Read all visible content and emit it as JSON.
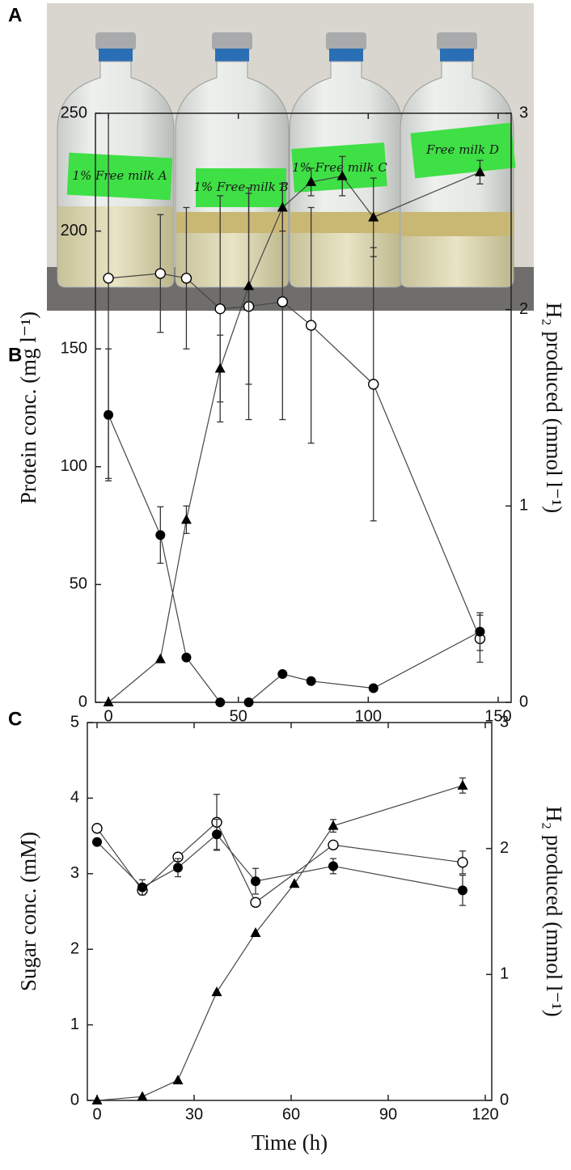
{
  "panel_labels": [
    "A",
    "B",
    "C"
  ],
  "photo": {
    "labels": [
      "1% Free milk A",
      "1% Free milk B",
      "1% Free milk C",
      "Free milk D"
    ]
  },
  "chart_data": [
    {
      "type": "line",
      "ylabel": "Protein conc. (mg l⁻¹)",
      "y2label": "H₂ produced (mmol l⁻¹)",
      "xlim": [
        -5,
        155
      ],
      "xticks": [
        0,
        50,
        100,
        150
      ],
      "ylim": [
        0,
        250
      ],
      "yticks": [
        0,
        50,
        100,
        150,
        200,
        250
      ],
      "y2lim": [
        0,
        3
      ],
      "y2ticks": [
        0,
        1,
        2,
        3
      ],
      "series": [
        {
          "marker": "open-circle",
          "color": "#000000",
          "x": [
            0,
            20,
            30,
            43,
            54,
            67,
            78,
            102,
            143
          ],
          "values": [
            180,
            182,
            180,
            167,
            168,
            170,
            160,
            135,
            27
          ],
          "errors": [
            85,
            25,
            30,
            48,
            48,
            50,
            50,
            58,
            10
          ]
        },
        {
          "marker": "filled-circle",
          "color": "#000000",
          "x": [
            0,
            20,
            30,
            43,
            54,
            67,
            78,
            102,
            143
          ],
          "values": [
            122,
            71,
            19,
            0,
            0,
            12,
            9,
            6,
            30
          ],
          "errors": [
            28,
            12,
            null,
            null,
            null,
            null,
            null,
            null,
            8
          ]
        },
        {
          "marker": "triangle",
          "color": "#000000",
          "axis": "y2",
          "x": [
            0,
            20,
            30,
            43,
            54,
            67,
            78,
            90,
            102,
            143
          ],
          "values": [
            0,
            0.22,
            0.93,
            1.7,
            2.12,
            2.52,
            2.65,
            2.68,
            2.47,
            2.7
          ],
          "errors": [
            null,
            null,
            0.07,
            0.17,
            0.5,
            0.12,
            0.07,
            0.1,
            0.2,
            0.06
          ]
        }
      ]
    },
    {
      "type": "line",
      "xlabel": "Time (h)",
      "ylabel": "Sugar conc. (mM)",
      "y2label": "H₂ produced (mmol l⁻¹)",
      "xlim": [
        -3,
        122
      ],
      "xticks": [
        0,
        30,
        60,
        90,
        120
      ],
      "ylim": [
        0,
        5
      ],
      "yticks": [
        0,
        1,
        2,
        3,
        4,
        5
      ],
      "y2lim": [
        0,
        3
      ],
      "y2ticks": [
        0,
        1,
        2,
        3
      ],
      "series": [
        {
          "marker": "open-circle",
          "color": "#000000",
          "x": [
            0,
            14,
            25,
            37,
            49,
            73,
            113
          ],
          "values": [
            3.6,
            2.78,
            3.22,
            3.68,
            2.62,
            3.38,
            3.15
          ],
          "errors": [
            null,
            null,
            null,
            0.37,
            null,
            null,
            0.15
          ]
        },
        {
          "marker": "filled-circle",
          "color": "#000000",
          "x": [
            0,
            14,
            25,
            37,
            49,
            73,
            113
          ],
          "values": [
            3.42,
            2.82,
            3.08,
            3.52,
            2.9,
            3.1,
            2.78
          ],
          "errors": [
            null,
            0.1,
            0.12,
            0.2,
            0.17,
            0.1,
            0.2
          ]
        },
        {
          "marker": "triangle",
          "color": "#000000",
          "axis": "y2",
          "x": [
            0,
            14,
            25,
            37,
            49,
            61,
            73,
            113
          ],
          "values": [
            0,
            0.03,
            0.16,
            0.86,
            1.33,
            1.72,
            2.18,
            2.5
          ],
          "errors": [
            null,
            null,
            null,
            null,
            null,
            null,
            0.05,
            0.06
          ]
        }
      ]
    }
  ]
}
